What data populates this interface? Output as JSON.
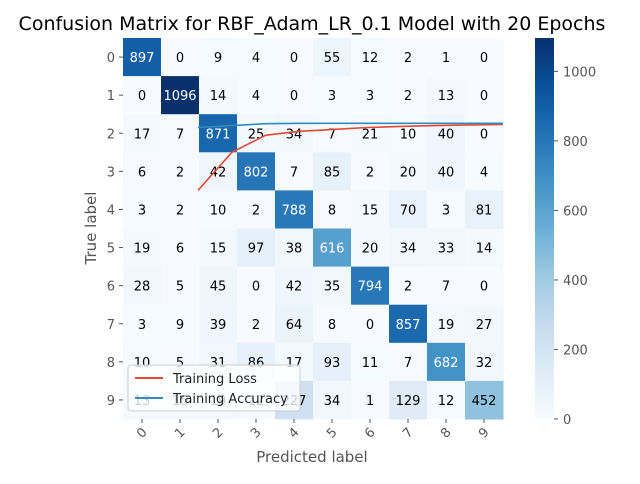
{
  "chart_data": {
    "type": "heatmap",
    "title": "Confusion Matrix for RBF_Adam_LR_0.1 Model with 20 Epochs",
    "xlabel": "Predicted label",
    "ylabel": "True label",
    "x_ticks": [
      "0",
      "1",
      "2",
      "3",
      "4",
      "5",
      "6",
      "7",
      "8",
      "9"
    ],
    "y_ticks": [
      "0",
      "1",
      "2",
      "3",
      "4",
      "5",
      "6",
      "7",
      "8",
      "9"
    ],
    "matrix": [
      [
        897,
        0,
        9,
        4,
        0,
        55,
        12,
        2,
        1,
        0
      ],
      [
        0,
        1096,
        14,
        4,
        0,
        3,
        3,
        2,
        13,
        0
      ],
      [
        17,
        7,
        871,
        25,
        34,
        7,
        21,
        10,
        40,
        0
      ],
      [
        6,
        2,
        42,
        802,
        7,
        85,
        2,
        20,
        40,
        4
      ],
      [
        3,
        2,
        10,
        2,
        788,
        8,
        15,
        70,
        3,
        81
      ],
      [
        19,
        6,
        15,
        97,
        38,
        616,
        20,
        34,
        33,
        14
      ],
      [
        28,
        5,
        45,
        0,
        42,
        35,
        794,
        2,
        7,
        0
      ],
      [
        3,
        9,
        39,
        2,
        64,
        8,
        0,
        857,
        19,
        27
      ],
      [
        10,
        5,
        31,
        86,
        17,
        93,
        11,
        7,
        682,
        32
      ],
      [
        13,
        15,
        19,
        12,
        227,
        34,
        1,
        129,
        12,
        452
      ]
    ],
    "colorbar": {
      "range": [
        0,
        1096
      ],
      "ticks": [
        0,
        200,
        400,
        600,
        800,
        1000
      ],
      "colormap": "Blues"
    },
    "overlay_lines": [
      {
        "name": "Training Loss",
        "color": "#e24a33",
        "values": [
          0.6,
          0.7,
          0.745,
          0.755,
          0.76,
          0.765,
          0.768,
          0.77,
          0.772,
          0.773
        ]
      },
      {
        "name": "Training Accuracy",
        "color": "#348abd",
        "values": [
          0.765,
          0.77,
          0.775,
          0.776,
          0.776,
          0.776,
          0.776,
          0.776,
          0.776,
          0.776
        ]
      }
    ],
    "legend": {
      "position": "lower-left",
      "entries": [
        "Training Loss",
        "Training Accuracy"
      ]
    }
  }
}
